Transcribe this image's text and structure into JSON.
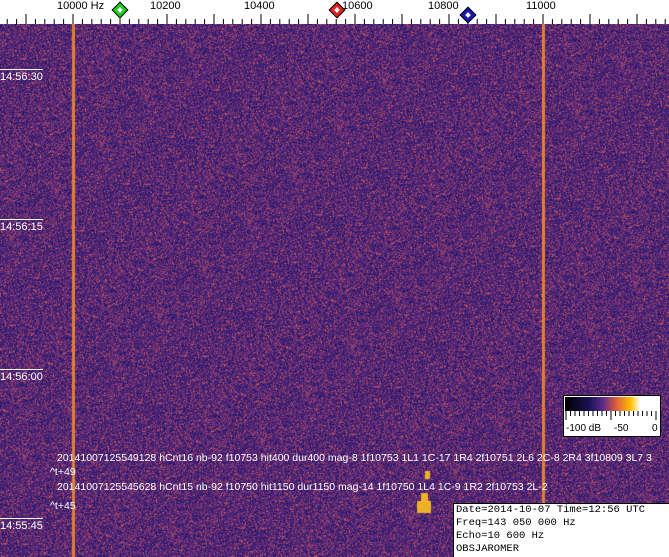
{
  "frequency_axis": {
    "unit": "Hz",
    "ticks": [
      {
        "value": 10000,
        "label": "10000  Hz"
      },
      {
        "value": 10200,
        "label": "10200"
      },
      {
        "value": 10400,
        "label": "10400"
      },
      {
        "value": 10600,
        "label": "10600"
      },
      {
        "value": 10800,
        "label": "10800"
      },
      {
        "value": 11000,
        "label": "11000"
      }
    ],
    "markers": [
      {
        "name": "green-marker",
        "freq": 10100,
        "color": "#22cc22"
      },
      {
        "name": "red-marker",
        "freq": 10560,
        "color": "#dd2222"
      },
      {
        "name": "blue-marker",
        "freq": 10840,
        "color": "#1a1ab0"
      }
    ]
  },
  "time_labels": [
    {
      "label": "14:56:30"
    },
    {
      "label": "14:56:15"
    },
    {
      "label": "14:56:00"
    },
    {
      "label": "14:55:45"
    }
  ],
  "carrier_lines_hz": [
    10000,
    11000
  ],
  "detections": [
    {
      "text": "20141007125549128 hCnt16 nb-92 f10753 hit400 dur400 mag-8 1f10753 1L1 1C-17 1R4 2f10751 2L6 2C-8 2R4 3f10809 3L7 3"
    },
    {
      "text": "^t+49"
    },
    {
      "text": "20141007125545628 hCnt15 nb-92 f10750 hit1150 dur1150 mag-14 1f10750 1L4 1C-9 1R2 2f10753 2L-2"
    },
    {
      "text": "^t+45"
    }
  ],
  "colorbar": {
    "labels": [
      "-100 dB",
      "-50",
      "0"
    ]
  },
  "info": {
    "date_line": "Date=2014-10-07 Time=12:56 UTC",
    "freq_line": "Freq=143 050 000 Hz",
    "echo_line": "Echo=10 600 Hz",
    "obs_line": "OBSJAROMER"
  },
  "colors": {
    "background": "#4a2a7a",
    "carrier": "#e08030",
    "echo": "#ffc020"
  }
}
